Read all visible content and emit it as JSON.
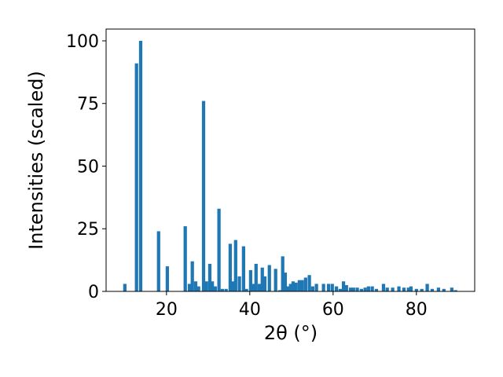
{
  "chart_data": {
    "type": "bar",
    "x_label": "2θ (°)",
    "y_label": "Intensities (scaled)",
    "color": "#1f77b4",
    "x": [
      10,
      12.8,
      13.8,
      18.1,
      20.2,
      24.5,
      25.5,
      26.2,
      27,
      27.7,
      28.9,
      29.6,
      30.4,
      31,
      31.7,
      32.6,
      33.4,
      34.3,
      35.3,
      36,
      36.6,
      37.5,
      38.5,
      39.2,
      40.2,
      40.8,
      41.5,
      42.3,
      43,
      43.6,
      44.7,
      46.2,
      47.2,
      47.9,
      48.5,
      49.2,
      49.8,
      50.4,
      51.1,
      51.9,
      52.6,
      53.4,
      54.3,
      55.1,
      56,
      57.7,
      58.9,
      59.8,
      60.8,
      61.7,
      62.5,
      63.2,
      64.2,
      64.9,
      65.8,
      66.8,
      67.7,
      68.5,
      69.4,
      70.4,
      72.1,
      73,
      74.3,
      75.8,
      77,
      78.1,
      78.7,
      80,
      81.3,
      82.6,
      83.8,
      85.3,
      86.6,
      88.5,
      89.4
    ],
    "values": [
      3,
      91,
      100,
      24,
      10,
      26,
      3,
      12,
      4,
      2,
      76,
      4,
      11,
      4,
      2,
      33,
      1,
      1,
      19,
      4,
      20.5,
      6,
      18,
      1,
      8.5,
      3,
      11,
      3,
      9.5,
      6,
      10.5,
      9,
      0.5,
      14,
      7.5,
      2,
      3,
      4,
      3.5,
      4.5,
      4.5,
      5.5,
      6.5,
      2,
      3,
      3,
      3,
      3,
      2,
      1,
      4,
      2.5,
      1.5,
      1.5,
      1.5,
      1,
      1.5,
      2,
      2,
      1,
      3,
      1.5,
      1.5,
      2,
      1.5,
      1.5,
      2,
      1,
      1,
      3,
      1,
      1.5,
      1,
      1.5,
      0.5
    ],
    "xlim": [
      5.5,
      94
    ],
    "ylim": [
      0,
      104.7
    ],
    "xticks": [
      20,
      40,
      60,
      80
    ],
    "yticks": [
      0,
      25,
      50,
      75,
      100
    ]
  }
}
